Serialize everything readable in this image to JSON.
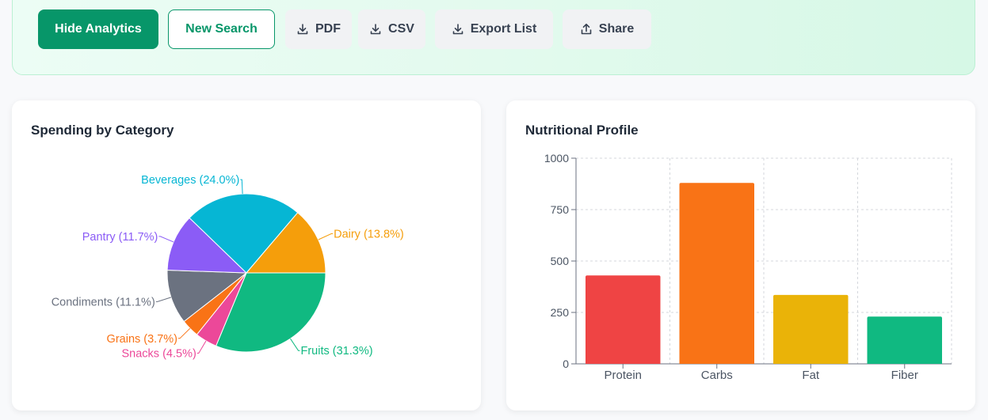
{
  "toolbar": {
    "hide_analytics": "Hide Analytics",
    "new_search": "New Search",
    "pdf": "PDF",
    "csv": "CSV",
    "export_list": "Export List",
    "share": "Share"
  },
  "spending": {
    "title": "Spending by Category"
  },
  "nutrition": {
    "title": "Nutritional Profile"
  },
  "chart_data": [
    {
      "type": "pie",
      "title": "Spending by Category",
      "slices": [
        {
          "label": "Fruits (31.3%)",
          "value": 31.3,
          "color": "#10b981"
        },
        {
          "label": "Snacks (4.5%)",
          "value": 4.5,
          "color": "#ec4899"
        },
        {
          "label": "Grains (3.7%)",
          "value": 3.7,
          "color": "#f97316"
        },
        {
          "label": "Condiments (11.1%)",
          "value": 11.1,
          "color": "#6b7280"
        },
        {
          "label": "Pantry (11.7%)",
          "value": 11.7,
          "color": "#8b5cf6"
        },
        {
          "label": "Beverages (24.0%)",
          "value": 24.0,
          "color": "#06b6d4"
        },
        {
          "label": "Dairy (13.8%)",
          "value": 13.8,
          "color": "#f59e0b"
        }
      ]
    },
    {
      "type": "bar",
      "title": "Nutritional Profile",
      "categories": [
        "Protein",
        "Carbs",
        "Fat",
        "Fiber"
      ],
      "values": [
        430,
        880,
        335,
        230
      ],
      "colors": [
        "#ef4444",
        "#f97316",
        "#eab308",
        "#10b981"
      ],
      "ylim": [
        0,
        1000
      ],
      "yticks": [
        0,
        250,
        500,
        750,
        1000
      ],
      "grid": true
    }
  ]
}
